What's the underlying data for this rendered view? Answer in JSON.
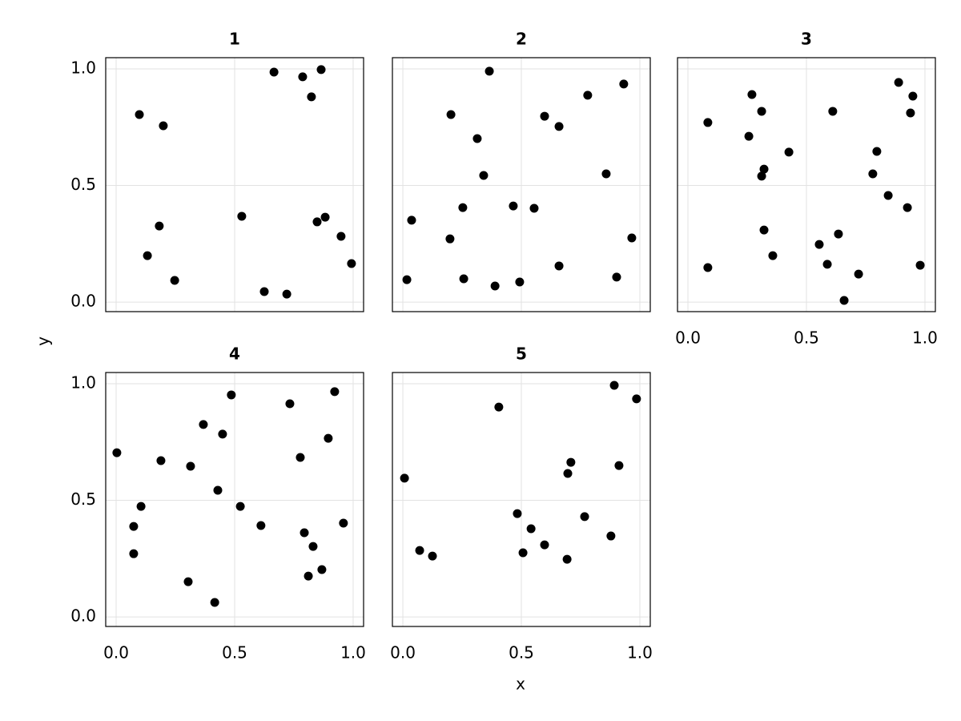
{
  "x_label": "x",
  "y_label": "y",
  "chart_data": [
    {
      "type": "scatter",
      "title": "1",
      "color": "#000000",
      "grid": true,
      "xlim": [
        -0.044,
        1.044
      ],
      "ylim": [
        -0.041,
        1.048
      ],
      "xticks": [
        {
          "value": 0,
          "label": "0.0"
        },
        {
          "value": 0.5,
          "label": "0.5"
        },
        {
          "value": 1,
          "label": "1.0"
        }
      ],
      "yticks": [
        {
          "value": 0,
          "label": "0.0"
        },
        {
          "value": 0.5,
          "label": "0.5"
        },
        {
          "value": 1,
          "label": "1.0"
        }
      ],
      "x": [
        0.666,
        0.787,
        0.865,
        0.824,
        0.098,
        0.199,
        0.53,
        0.182,
        0.882,
        0.848,
        0.132,
        0.949,
        0.993,
        0.247,
        0.625,
        0.72
      ],
      "values": [
        0.986,
        0.966,
        0.997,
        0.88,
        0.804,
        0.756,
        0.368,
        0.326,
        0.364,
        0.344,
        0.199,
        0.282,
        0.165,
        0.093,
        0.045,
        0.034
      ]
    },
    {
      "type": "scatter",
      "title": "2",
      "color": "#000000",
      "grid": true,
      "xlim": [
        -0.044,
        1.044
      ],
      "ylim": [
        -0.041,
        1.048
      ],
      "xticks": [
        {
          "value": 0,
          "label": "0.0"
        },
        {
          "value": 0.5,
          "label": "0.5"
        },
        {
          "value": 1,
          "label": "1.0"
        }
      ],
      "yticks": [
        {
          "value": 0,
          "label": "0.0"
        },
        {
          "value": 0.5,
          "label": "0.5"
        },
        {
          "value": 1,
          "label": "1.0"
        }
      ],
      "x": [
        0.365,
        0.932,
        0.203,
        0.78,
        0.598,
        0.659,
        0.314,
        0.858,
        0.341,
        0.037,
        0.253,
        0.466,
        0.554,
        0.199,
        0.966,
        0.659,
        0.017,
        0.257,
        0.389,
        0.493,
        0.902
      ],
      "values": [
        0.99,
        0.935,
        0.804,
        0.887,
        0.797,
        0.753,
        0.701,
        0.55,
        0.543,
        0.351,
        0.405,
        0.412,
        0.402,
        0.271,
        0.275,
        0.155,
        0.096,
        0.1,
        0.069,
        0.086,
        0.107
      ]
    },
    {
      "type": "scatter",
      "title": "3",
      "color": "#000000",
      "grid": true,
      "xlim": [
        -0.044,
        1.044
      ],
      "ylim": [
        -0.041,
        1.048
      ],
      "xticks": [
        {
          "value": 0,
          "label": "0.0"
        },
        {
          "value": 0.5,
          "label": "0.5"
        },
        {
          "value": 1,
          "label": "1.0"
        }
      ],
      "yticks": [
        {
          "value": 0,
          "label": "0.0"
        },
        {
          "value": 0.5,
          "label": "0.5"
        },
        {
          "value": 1,
          "label": "1.0"
        }
      ],
      "x": [
        0.889,
        0.27,
        0.949,
        0.084,
        0.939,
        0.311,
        0.611,
        0.257,
        0.426,
        0.321,
        0.311,
        0.797,
        0.78,
        0.845,
        0.926,
        0.321,
        0.635,
        0.554,
        0.358,
        0.588,
        0.084,
        0.72,
        0.98,
        0.659
      ],
      "values": [
        0.942,
        0.89,
        0.883,
        0.77,
        0.811,
        0.818,
        0.818,
        0.711,
        0.643,
        0.57,
        0.54,
        0.646,
        0.55,
        0.457,
        0.405,
        0.309,
        0.292,
        0.247,
        0.199,
        0.162,
        0.148,
        0.12,
        0.158,
        0.007
      ]
    },
    {
      "type": "scatter",
      "title": "4",
      "color": "#000000",
      "grid": true,
      "xlim": [
        -0.044,
        1.044
      ],
      "ylim": [
        -0.041,
        1.048
      ],
      "xticks": [
        {
          "value": 0,
          "label": "0.0"
        },
        {
          "value": 0.5,
          "label": "0.5"
        },
        {
          "value": 1,
          "label": "1.0"
        }
      ],
      "yticks": [
        {
          "value": 0,
          "label": "0.0"
        },
        {
          "value": 0.5,
          "label": "0.5"
        },
        {
          "value": 1,
          "label": "1.0"
        }
      ],
      "x": [
        0.003,
        0.486,
        0.922,
        0.733,
        0.368,
        0.449,
        0.895,
        0.189,
        0.314,
        0.777,
        0.429,
        0.105,
        0.524,
        0.074,
        0.611,
        0.959,
        0.794,
        0.831,
        0.074,
        0.868,
        0.811,
        0.304,
        0.416
      ],
      "values": [
        0.704,
        0.952,
        0.966,
        0.914,
        0.825,
        0.784,
        0.766,
        0.67,
        0.646,
        0.684,
        0.543,
        0.474,
        0.474,
        0.388,
        0.392,
        0.402,
        0.361,
        0.302,
        0.271,
        0.203,
        0.175,
        0.151,
        0.062
      ]
    },
    {
      "type": "scatter",
      "title": "5",
      "color": "#000000",
      "grid": true,
      "xlim": [
        -0.044,
        1.044
      ],
      "ylim": [
        -0.041,
        1.048
      ],
      "xticks": [
        {
          "value": 0,
          "label": "0.0"
        },
        {
          "value": 0.5,
          "label": "0.5"
        },
        {
          "value": 1,
          "label": "1.0"
        }
      ],
      "yticks": [
        {
          "value": 0,
          "label": "0.0"
        },
        {
          "value": 0.5,
          "label": "0.5"
        },
        {
          "value": 1,
          "label": "1.0"
        }
      ],
      "x": [
        0.892,
        0.986,
        0.405,
        0.007,
        0.709,
        0.696,
        0.912,
        0.483,
        0.541,
        0.767,
        0.071,
        0.125,
        0.507,
        0.598,
        0.693,
        0.878
      ],
      "values": [
        0.993,
        0.935,
        0.9,
        0.595,
        0.663,
        0.615,
        0.649,
        0.443,
        0.378,
        0.43,
        0.285,
        0.261,
        0.275,
        0.309,
        0.247,
        0.347
      ]
    }
  ]
}
